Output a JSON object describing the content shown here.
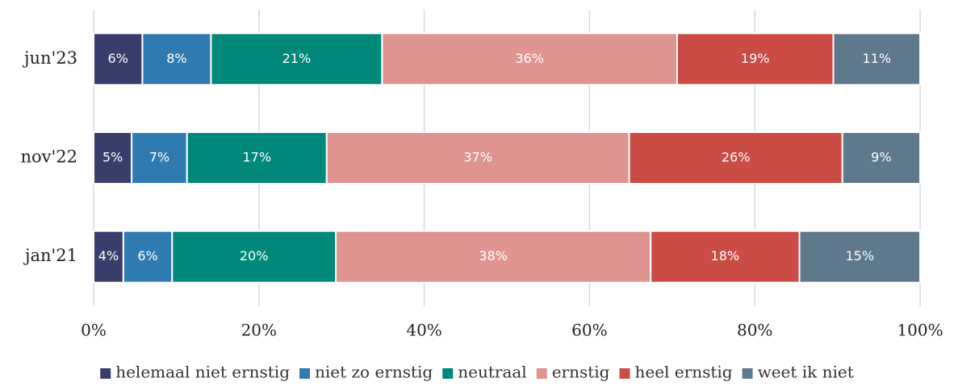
{
  "chart_data": {
    "type": "stacked_barh",
    "categories": [
      "jun'23",
      "nov'22",
      "jan'21"
    ],
    "series": [
      {
        "name": "helemaal niet ernstig",
        "color": "#393d6b",
        "values": [
          5.9,
          4.6,
          3.6
        ],
        "value_labels": [
          "6%",
          "5%",
          "4%"
        ]
      },
      {
        "name": "niet zo ernstig",
        "color": "#2f7bb1",
        "values": [
          8.3,
          6.7,
          5.9
        ],
        "value_labels": [
          "8%",
          "7%",
          "6%"
        ]
      },
      {
        "name": "neutraal",
        "color": "#00887a",
        "values": [
          20.7,
          16.9,
          19.8
        ],
        "value_labels": [
          "21%",
          "17%",
          "20%"
        ]
      },
      {
        "name": "ernstig",
        "color": "#df948f",
        "values": [
          35.7,
          36.6,
          38.1
        ],
        "value_labels": [
          "36%",
          "37%",
          "38%"
        ]
      },
      {
        "name": "heel ernstig",
        "color": "#cb4b45",
        "values": [
          18.9,
          25.8,
          18.0
        ],
        "value_labels": [
          "19%",
          "26%",
          "18%"
        ]
      },
      {
        "name": "weet ik niet",
        "color": "#5e798c",
        "values": [
          10.5,
          9.4,
          14.6
        ],
        "value_labels": [
          "11%",
          "9%",
          "15%"
        ]
      }
    ],
    "xlim": [
      0,
      100
    ],
    "xticks": [
      {
        "value": 0,
        "label": "0%"
      },
      {
        "value": 20,
        "label": "20%"
      },
      {
        "value": 40,
        "label": "40%"
      },
      {
        "value": 60,
        "label": "60%"
      },
      {
        "value": 80,
        "label": "80%"
      },
      {
        "value": 100,
        "label": "100%"
      }
    ],
    "grid": true,
    "legend": "bottom"
  }
}
